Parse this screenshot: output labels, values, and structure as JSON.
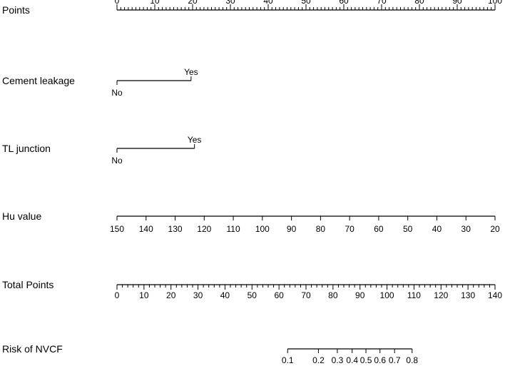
{
  "chart_data": {
    "type": "nomogram",
    "rows": [
      {
        "label": "Points",
        "scale": "points",
        "ticks": [
          0,
          10,
          20,
          30,
          40,
          50,
          60,
          70,
          80,
          90,
          100
        ],
        "minor_step": 1,
        "labels_above": true
      },
      {
        "label": "Cement  leakage",
        "scale": "points",
        "categories": [
          {
            "label": "No",
            "points": 0
          },
          {
            "label": "Yes",
            "points": 19.6
          }
        ]
      },
      {
        "label": "TL  junction",
        "scale": "points",
        "categories": [
          {
            "label": "No",
            "points": 0
          },
          {
            "label": "Yes",
            "points": 20.5
          }
        ]
      },
      {
        "label": "Hu  value",
        "scale": "points",
        "value_range": [
          150,
          20
        ],
        "ticks": [
          150,
          140,
          130,
          120,
          110,
          100,
          90,
          80,
          70,
          60,
          50,
          40,
          30,
          20
        ]
      },
      {
        "label": "Total Points",
        "scale": "total",
        "ticks": [
          0,
          10,
          20,
          30,
          40,
          50,
          60,
          70,
          80,
          90,
          100,
          110,
          120,
          130,
          140
        ],
        "minor_step": 2
      },
      {
        "label": "Risk of NVCF",
        "scale": "total",
        "risk_ticks": [
          {
            "label": "0.1",
            "total": 63.2
          },
          {
            "label": "0.2",
            "total": 74.6
          },
          {
            "label": "0.3",
            "total": 81.6
          },
          {
            "label": "0.4",
            "total": 87.1
          },
          {
            "label": "0.5",
            "total": 92.2
          },
          {
            "label": "0.6",
            "total": 97.4
          },
          {
            "label": "0.7",
            "total": 102.8
          },
          {
            "label": "0.8",
            "total": 109.3
          }
        ]
      }
    ]
  }
}
